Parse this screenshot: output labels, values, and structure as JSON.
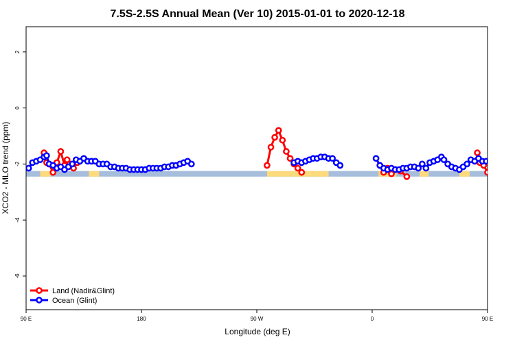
{
  "chart_data": {
    "type": "line",
    "title": "7.5S-2.5S Annual Mean (Ver 10)   2015-01-01 to 2020-12-18",
    "xlabel": "Longitude (deg E)",
    "ylabel": "XCO2 - MLO trend (ppm)",
    "xlim": [
      90,
      450
    ],
    "ylim": [
      -7.2,
      2.9
    ],
    "x_ticks": [
      {
        "value": 90,
        "label": "90 E"
      },
      {
        "value": 180,
        "label": "180"
      },
      {
        "value": 270,
        "label": "90 W"
      },
      {
        "value": 360,
        "label": "0"
      },
      {
        "value": 450,
        "label": "90 E"
      },
      {
        "value": 540,
        "label": "180"
      }
    ],
    "y_ticks": [
      -6,
      -4,
      -2,
      0,
      2
    ],
    "grid": false,
    "legend_position": "bottom-left",
    "land_strip_y": [
      -2.25,
      -2.45
    ],
    "land_ranges": [
      [
        101,
        109
      ],
      [
        139,
        147
      ],
      [
        278,
        326
      ],
      [
        365,
        379
      ],
      [
        397,
        404
      ],
      [
        428,
        436
      ]
    ],
    "series": [
      {
        "name": "Land (Nadir&Glint)",
        "color": "#ff0000",
        "segments": [
          [
            [
              104,
              -1.6
            ],
            [
              106,
              -1.95
            ],
            [
              108,
              -2.0
            ],
            [
              111,
              -2.3
            ],
            [
              114,
              -1.95
            ],
            [
              117,
              -1.55
            ],
            [
              120,
              -2.05
            ],
            [
              122,
              -1.85
            ],
            [
              124,
              -2.0
            ],
            [
              127,
              -2.15
            ],
            [
              130,
              -1.95
            ]
          ],
          [
            [
              278,
              -2.05
            ],
            [
              281,
              -1.4
            ],
            [
              284,
              -1.05
            ],
            [
              287,
              -0.8
            ],
            [
              290,
              -1.15
            ],
            [
              293,
              -1.55
            ],
            [
              296,
              -1.8
            ],
            [
              299,
              -2.0
            ],
            [
              302,
              -2.15
            ],
            [
              305,
              -2.3
            ]
          ],
          [
            [
              366,
              -2.05
            ],
            [
              369,
              -2.3
            ],
            [
              372,
              -2.15
            ],
            [
              375,
              -2.35
            ],
            [
              378,
              -2.2
            ],
            [
              382,
              -2.25
            ],
            [
              387,
              -2.45
            ]
          ],
          [
            [
              442,
              -1.6
            ],
            [
              444,
              -1.95
            ],
            [
              447,
              -2.05
            ],
            [
              450,
              -2.3
            ],
            [
              452,
              -1.95
            ],
            [
              454,
              -1.55
            ],
            [
              456,
              -2.05
            ],
            [
              459,
              -1.9
            ],
            [
              462,
              -2.1
            ],
            [
              465,
              -2.2
            ],
            [
              467,
              -1.95
            ]
          ]
        ]
      },
      {
        "name": "Ocean (Glint)",
        "color": "#0000ff",
        "segments": [
          [
            [
              92,
              -2.15
            ],
            [
              95,
              -1.95
            ],
            [
              98,
              -1.9
            ],
            [
              101,
              -1.85
            ],
            [
              104,
              -1.75
            ],
            [
              106,
              -1.7
            ],
            [
              108,
              -2.0
            ],
            [
              111,
              -2.05
            ],
            [
              114,
              -2.15
            ],
            [
              117,
              -2.1
            ],
            [
              120,
              -2.2
            ],
            [
              123,
              -2.1
            ],
            [
              126,
              -2.0
            ],
            [
              129,
              -1.85
            ],
            [
              132,
              -1.9
            ],
            [
              135,
              -1.8
            ],
            [
              138,
              -1.9
            ],
            [
              141,
              -1.9
            ],
            [
              144,
              -1.9
            ],
            [
              147,
              -2.0
            ],
            [
              150,
              -2.0
            ],
            [
              153,
              -2.0
            ],
            [
              156,
              -2.1
            ],
            [
              159,
              -2.1
            ],
            [
              162,
              -2.15
            ],
            [
              165,
              -2.15
            ],
            [
              168,
              -2.15
            ],
            [
              171,
              -2.2
            ],
            [
              174,
              -2.2
            ],
            [
              177,
              -2.2
            ],
            [
              180,
              -2.2
            ],
            [
              183,
              -2.2
            ],
            [
              186,
              -2.15
            ],
            [
              189,
              -2.15
            ],
            [
              192,
              -2.15
            ],
            [
              195,
              -2.15
            ],
            [
              198,
              -2.1
            ],
            [
              201,
              -2.1
            ],
            [
              204,
              -2.05
            ],
            [
              207,
              -2.05
            ],
            [
              210,
              -2.0
            ],
            [
              213,
              -1.95
            ],
            [
              216,
              -1.9
            ],
            [
              219,
              -2.0
            ]
          ],
          [
            [
              299,
              -1.95
            ],
            [
              302,
              -1.9
            ],
            [
              305,
              -1.95
            ],
            [
              308,
              -1.9
            ],
            [
              311,
              -1.85
            ],
            [
              314,
              -1.8
            ],
            [
              317,
              -1.8
            ],
            [
              320,
              -1.75
            ],
            [
              323,
              -1.75
            ],
            [
              326,
              -1.8
            ],
            [
              329,
              -1.8
            ],
            [
              332,
              -1.95
            ],
            [
              335,
              -2.05
            ]
          ],
          [
            [
              363,
              -1.8
            ],
            [
              366,
              -2.05
            ],
            [
              369,
              -2.15
            ],
            [
              372,
              -2.2
            ],
            [
              375,
              -2.15
            ],
            [
              378,
              -2.2
            ],
            [
              381,
              -2.2
            ],
            [
              384,
              -2.15
            ],
            [
              387,
              -2.15
            ],
            [
              390,
              -2.1
            ],
            [
              393,
              -2.1
            ],
            [
              396,
              -2.15
            ],
            [
              399,
              -2.0
            ],
            [
              402,
              -2.15
            ],
            [
              405,
              -1.95
            ],
            [
              408,
              -1.9
            ],
            [
              411,
              -1.85
            ],
            [
              414,
              -1.75
            ],
            [
              416,
              -1.85
            ],
            [
              419,
              -2.0
            ],
            [
              422,
              -2.1
            ],
            [
              425,
              -2.15
            ],
            [
              428,
              -2.2
            ],
            [
              431,
              -2.1
            ],
            [
              434,
              -2.0
            ],
            [
              437,
              -1.85
            ],
            [
              440,
              -1.9
            ],
            [
              443,
              -1.8
            ],
            [
              446,
              -1.9
            ],
            [
              449,
              -1.9
            ],
            [
              452,
              -1.9
            ],
            [
              455,
              -2.0
            ],
            [
              458,
              -2.05
            ],
            [
              461,
              -2.15
            ],
            [
              464,
              -1.85
            ],
            [
              467,
              -1.9
            ],
            [
              470,
              -1.9
            ],
            [
              473,
              -1.95
            ],
            [
              476,
              -1.95
            ],
            [
              479,
              -1.95
            ],
            [
              482,
              -2.0
            ],
            [
              486,
              -2.0
            ],
            [
              490,
              -1.95
            ]
          ]
        ]
      }
    ]
  }
}
